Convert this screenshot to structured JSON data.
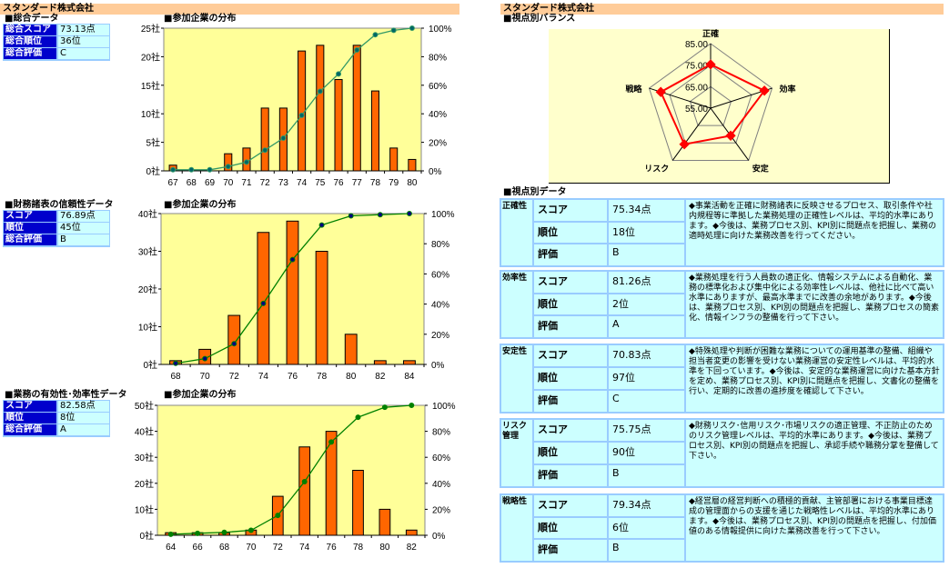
{
  "company": "スタンダード株式会社",
  "left": {
    "overall": {
      "title": "■総合データ",
      "rows": [
        [
          "総合スコア",
          "73.13点"
        ],
        [
          "総合順位",
          "36位"
        ],
        [
          "総合評価",
          "C"
        ]
      ]
    },
    "finance": {
      "title": "■財務諸表の信頼性データ",
      "rows": [
        [
          "スコア",
          "76.89点"
        ],
        [
          "順位",
          "45位"
        ],
        [
          "総合評価",
          "B"
        ]
      ]
    },
    "operations": {
      "title": "■業務の有効性･効率性データ",
      "rows": [
        [
          "スコア",
          "82.58点"
        ],
        [
          "順位",
          "8位"
        ],
        [
          "総合評価",
          "A"
        ]
      ]
    }
  },
  "chart_data": [
    {
      "type": "bar",
      "title": "■参加企業の分布",
      "categories": [
        "67",
        "68",
        "69",
        "70",
        "71",
        "72",
        "73",
        "74",
        "75",
        "76",
        "77",
        "78",
        "79",
        "80"
      ],
      "values": [
        1,
        0,
        0,
        3,
        4,
        11,
        11,
        21,
        22,
        16,
        22,
        14,
        4,
        2
      ],
      "yticks": [
        "0社",
        "5社",
        "10社",
        "15社",
        "20社",
        "25社"
      ],
      "ylim": [
        0,
        25
      ],
      "y2ticks": [
        "0%",
        "20%",
        "40%",
        "60%",
        "80%",
        "100%"
      ],
      "y2lim": [
        0,
        100
      ],
      "line": "cumulative percent",
      "line_color": "#339966",
      "marker_color": "#006666"
    },
    {
      "type": "bar",
      "title": "■参加企業の分布",
      "categories": [
        "68",
        "70",
        "72",
        "74",
        "76",
        "78",
        "80",
        "82",
        "84"
      ],
      "values": [
        1,
        4,
        13,
        35,
        38,
        30,
        8,
        1,
        1
      ],
      "yticks": [
        "0社",
        "10社",
        "20社",
        "30社",
        "40社"
      ],
      "ylim": [
        0,
        40
      ],
      "y2ticks": [
        "0%",
        "20%",
        "40%",
        "60%",
        "80%",
        "100%"
      ],
      "y2lim": [
        0,
        100
      ],
      "line": "cumulative percent",
      "line_color": "#008000",
      "marker_color": "#000080"
    },
    {
      "type": "bar",
      "title": "■参加企業の分布",
      "categories": [
        "64",
        "66",
        "68",
        "70",
        "72",
        "74",
        "76",
        "78",
        "80",
        "82"
      ],
      "values": [
        1,
        1,
        1,
        2,
        15,
        34,
        40,
        25,
        10,
        2
      ],
      "yticks": [
        "0社",
        "10社",
        "20社",
        "30社",
        "40社",
        "50社"
      ],
      "ylim": [
        0,
        50
      ],
      "y2ticks": [
        "0%",
        "20%",
        "40%",
        "60%",
        "80%",
        "100%"
      ],
      "y2lim": [
        0,
        100
      ],
      "line": "cumulative percent",
      "line_color": "#008000",
      "marker_color": "#008000"
    },
    {
      "type": "radar",
      "title": "■視点別バランス",
      "axes": [
        "正確",
        "効率",
        "安定",
        "リスク",
        "戦略"
      ],
      "values": [
        75.34,
        81.26,
        70.83,
        75.75,
        79.34
      ],
      "rlim": [
        55,
        85
      ],
      "rticks": [
        "55.00",
        "65.00",
        "75.00",
        "85.00"
      ],
      "color": "#ff0000"
    }
  ],
  "right": {
    "table_title": "■視点別データ",
    "keys": [
      "スコア",
      "順位",
      "評価"
    ],
    "groups": [
      {
        "label": "正確性",
        "score": "75.34点",
        "rank": "18位",
        "grade": "B",
        "comment": "◆事業活動を正確に財務諸表に反映させるプロセス、取引条件や社内規程等に準拠した業務処理の正確性レベルは、平均的水準にあります。◆今後は、業務プロセス別、KPI別に問題点を把握し、業務の適時処理に向けた業務改善を行ってください。"
      },
      {
        "label": "効率性",
        "score": "81.26点",
        "rank": "2位",
        "grade": "A",
        "comment": "◆業務処理を行う人員数の適正化、情報システムによる自動化、業務の標準化および集中化による効率性レベルは、他社に比べて高い水準にありますが、最高水準までに改善の余地があります。◆今後は、業務プロセス別、KPI別の問題点を把握し、業務プロセスの簡素化、情報インフラの整備を行って下さい。"
      },
      {
        "label": "安定性",
        "score": "70.83点",
        "rank": "97位",
        "grade": "C",
        "comment": "◆特殊処理や判断が困難な業務についての運用基準の整備、組織や担当者変更の影響を受けない業務運営の安定性レベルは、平均的水準を下回っています。◆今後は、安定的な業務運営に向けた基本方針を定め、業務プロセス別、KPI別に問題点を把握し、文書化の整備を行い、定期的に改善の進捗度を確認して下さい。"
      },
      {
        "label": "リスク管理",
        "score": "75.75点",
        "rank": "90位",
        "grade": "B",
        "comment": "◆財務リスク･信用リスク･市場リスクの適正管理、不正防止のためのリスク管理レベルは、平均的水準にあります。◆今後は、業務プロセス別、KPI別の問題点を把握し、承認手続や職務分掌を整備して下さい。"
      },
      {
        "label": "戦略性",
        "score": "79.34点",
        "rank": "6位",
        "grade": "B",
        "comment": "◆経営層の経営判断への積極的貢献、主管部署における事業目標達成の管理面からの支援を通じた戦略性レベルは、平均的水準にあります。◆今後は、業務プロセス別、KPI別の問題点を把握し、付加価値のある情報提供に向けた業務改善を行って下さい。"
      }
    ]
  }
}
